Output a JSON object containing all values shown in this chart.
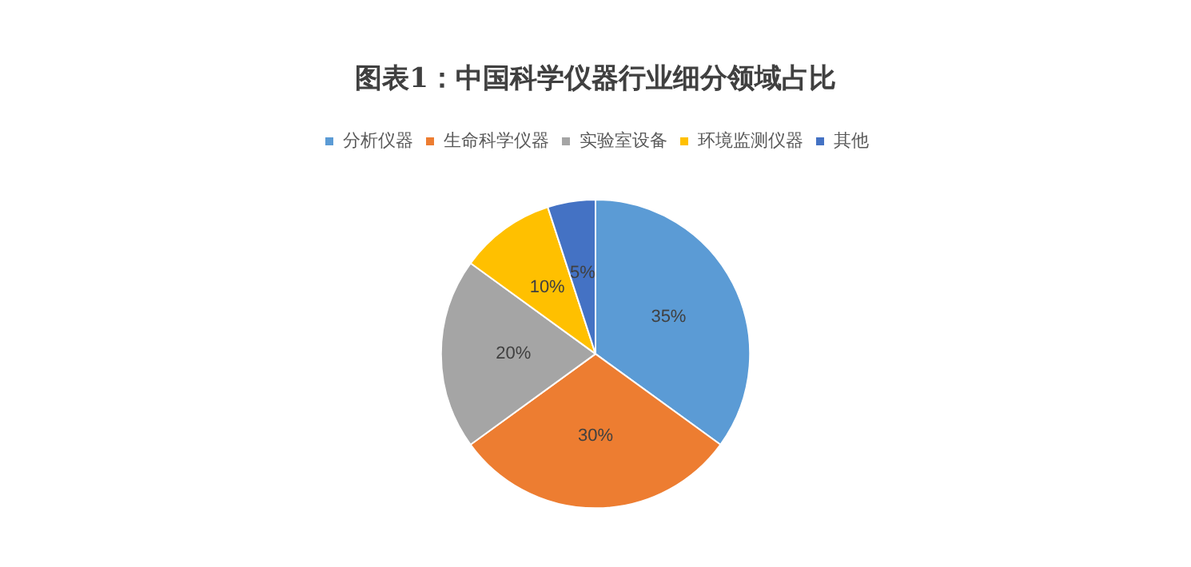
{
  "chart_data": {
    "type": "pie",
    "title": "图表1：中国科学仪器行业细分领域占比",
    "categories": [
      "分析仪器",
      "生命科学仪器",
      "实验室设备",
      "环境监测仪器",
      "其他"
    ],
    "values": [
      35,
      30,
      20,
      10,
      5
    ],
    "colors": [
      "#5b9bd5",
      "#ed7d31",
      "#a5a5a5",
      "#ffc000",
      "#4472c4"
    ],
    "value_labels": [
      "35%",
      "30%",
      "20%",
      "10%",
      "5%"
    ],
    "legend": "top"
  }
}
